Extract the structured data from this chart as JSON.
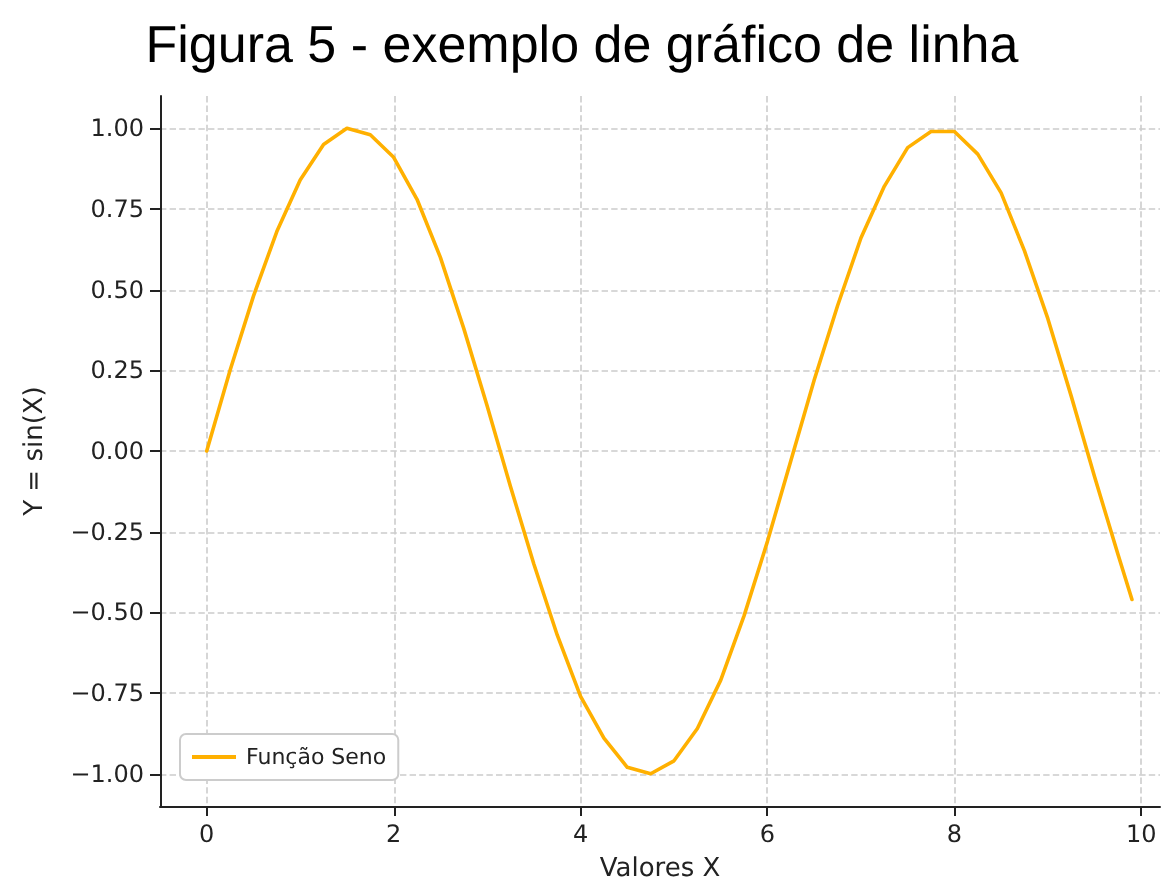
{
  "chart_data": {
    "type": "line",
    "title": "Figura 5 - exemplo de gráfico de linha",
    "xlabel": "Valores X",
    "ylabel": "Y = sin(X)",
    "x": [
      0,
      0.25,
      0.5,
      0.75,
      1,
      1.25,
      1.5,
      1.75,
      2,
      2.25,
      2.5,
      2.75,
      3,
      3.25,
      3.5,
      3.75,
      4,
      4.25,
      4.5,
      4.75,
      5,
      5.25,
      5.5,
      5.75,
      6,
      6.25,
      6.5,
      6.75,
      7,
      7.25,
      7.5,
      7.75,
      8,
      8.25,
      8.5,
      8.75,
      9,
      9.25,
      9.5,
      9.75,
      9.9
    ],
    "series": [
      {
        "name": "Função Seno",
        "color": "#ffb000",
        "values": [
          0,
          0.25,
          0.48,
          0.68,
          0.84,
          0.95,
          1.0,
          0.98,
          0.91,
          0.78,
          0.6,
          0.38,
          0.14,
          -0.11,
          -0.35,
          -0.57,
          -0.76,
          -0.89,
          -0.98,
          -1.0,
          -0.96,
          -0.86,
          -0.71,
          -0.51,
          -0.28,
          -0.03,
          0.22,
          0.45,
          0.66,
          0.82,
          0.94,
          0.99,
          0.99,
          0.92,
          0.8,
          0.62,
          0.41,
          0.17,
          -0.08,
          -0.32,
          -0.46
        ]
      }
    ],
    "xlim": [
      -0.5,
      10.2
    ],
    "xticks": [
      0,
      2,
      4,
      6,
      8,
      10
    ],
    "ylim": [
      -1.1,
      1.1
    ],
    "yticks": [
      {
        "value": -1,
        "label": "−1.00"
      },
      {
        "value": -0.75,
        "label": "−0.75"
      },
      {
        "value": -0.5,
        "label": "−0.50"
      },
      {
        "value": -0.25,
        "label": "−0.25"
      },
      {
        "value": 0,
        "label": "0.00"
      },
      {
        "value": 0.25,
        "label": "0.25"
      },
      {
        "value": 0.5,
        "label": "0.50"
      },
      {
        "value": 0.75,
        "label": "0.75"
      },
      {
        "value": 1,
        "label": "1.00"
      }
    ],
    "grid": true,
    "legend": "bottom left",
    "marker": "none",
    "line_style": "solid"
  }
}
